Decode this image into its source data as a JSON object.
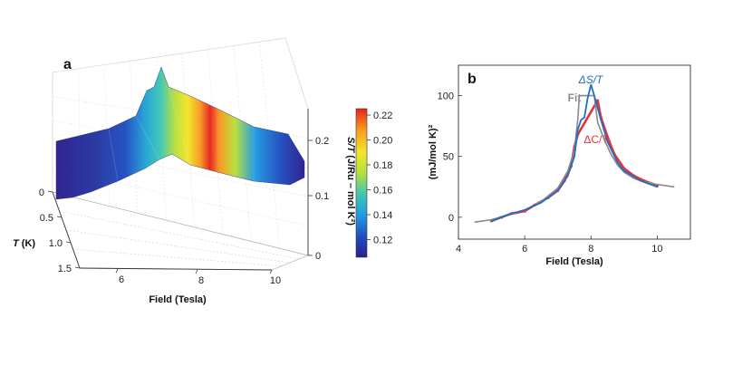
{
  "panel_a": {
    "letter": "a",
    "xlabel": "Field (Tesla)",
    "ylabel": "T (K)",
    "ylabel_var": "T",
    "ylabel_unit": " (K)",
    "zlabel": "S/T (J/Ru – mol K²)",
    "zlabel_var": "S/T",
    "zlabel_unit": " (J/Ru – mol K²)",
    "x_ticks": [
      "6",
      "8",
      "10"
    ],
    "t_ticks": [
      "0",
      "0.5",
      "1.0",
      "1.5"
    ],
    "z_ticks": [
      "0.2",
      "0.1",
      "0"
    ],
    "colorbar_ticks": [
      "0.22",
      "0.20",
      "0.18",
      "0.16",
      "0.14",
      "0.12"
    ],
    "colormap": [
      "#2b1e8f",
      "#1f4fc2",
      "#1e9be0",
      "#3cc6b4",
      "#b9e03a",
      "#f4e52b",
      "#f79a1e",
      "#e8231e"
    ]
  },
  "panel_b": {
    "letter": "b",
    "xlabel": "Field (Tesla)",
    "ylabel": "(mJ/mol K)²",
    "label_dS": "ΔS/T",
    "label_fit": "Fit",
    "label_dC": "ΔC/T",
    "colors": {
      "dS": "#1f6fc2",
      "fit": "#8a8a8a",
      "dC": "#e8323a"
    }
  },
  "chart_data": [
    {
      "type": "area",
      "panel": "a",
      "title": "",
      "xlabel": "Field (Tesla)",
      "ylabel": "T (K)",
      "zlabel": "S/T (J/Ru – mol K²)",
      "xlim": [
        5,
        10.5
      ],
      "ylim_T": [
        0,
        1.5
      ],
      "zlim": [
        0,
        0.25
      ],
      "colorbar_range": [
        0.11,
        0.225
      ],
      "surface_ridge": {
        "x": [
          5,
          6,
          7,
          7.5,
          7.8,
          7.9,
          8.1,
          8.5,
          9,
          10,
          10.5
        ],
        "z_at_T0": [
          0.13,
          0.15,
          0.17,
          0.185,
          0.21,
          0.22,
          0.215,
          0.19,
          0.15,
          0.12,
          0.11
        ]
      }
    },
    {
      "type": "line",
      "panel": "b",
      "title": "",
      "xlabel": "Field (Tesla)",
      "ylabel": "(mJ/mol K)²",
      "xlim": [
        4,
        11
      ],
      "ylim": [
        -18,
        125
      ],
      "x_ticks": [
        4,
        6,
        8,
        10
      ],
      "y_ticks": [
        0,
        50,
        100
      ],
      "series": [
        {
          "name": "Fit",
          "x": [
            4.5,
            5.0,
            5.5,
            6.0,
            6.5,
            7.0,
            7.3,
            7.5,
            7.6,
            7.65,
            8.1,
            8.2,
            8.4,
            8.6,
            8.8,
            9.0,
            9.3,
            9.6,
            10.0,
            10.5
          ],
          "y": [
            -4,
            -2,
            2,
            6,
            13,
            24,
            38,
            55,
            80,
            100,
            100,
            78,
            64,
            52,
            43,
            37,
            32,
            29,
            27,
            25
          ]
        },
        {
          "name": "ΔS/T",
          "x": [
            5.0,
            5.5,
            6.0,
            6.5,
            7.0,
            7.3,
            7.5,
            7.6,
            7.7,
            7.8,
            7.9,
            8.0,
            8.1,
            8.3,
            8.5,
            8.8,
            9.0,
            9.5,
            10.0
          ],
          "y": [
            -3,
            2,
            6,
            12,
            22,
            34,
            50,
            72,
            80,
            82,
            98,
            109,
            100,
            80,
            62,
            45,
            38,
            30,
            25
          ]
        },
        {
          "name": "ΔC/T",
          "x": [
            5.0,
            5.3,
            5.6,
            6.0,
            6.3,
            6.7,
            7.0,
            7.2,
            7.4,
            7.5,
            7.6,
            8.2,
            8.3,
            8.5,
            8.7,
            9.0,
            9.3,
            9.6,
            10.0
          ],
          "y": [
            -3,
            0,
            3,
            5,
            10,
            16,
            22,
            30,
            42,
            58,
            68,
            96,
            82,
            66,
            52,
            40,
            34,
            30,
            26
          ]
        }
      ]
    }
  ]
}
